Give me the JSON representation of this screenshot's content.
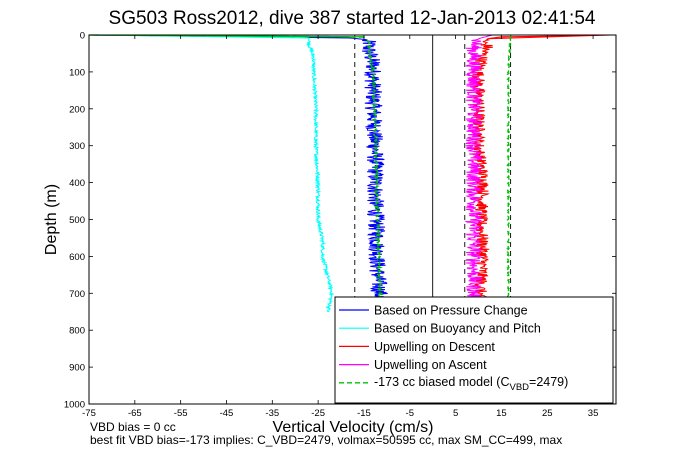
{
  "chart_data": {
    "type": "line",
    "title": "SG503 Ross2012, dive 387 started 12-Jan-2013 02:41:54",
    "xlabel": "Vertical Velocity (cm/s)",
    "ylabel": "Depth (m)",
    "xlim": [
      -75,
      40
    ],
    "ylim": [
      0,
      1000
    ],
    "y_reversed": true,
    "xticks": [
      "-75",
      "-65",
      "-55",
      "-45",
      "-35",
      "-25",
      "-15",
      "-5",
      "5",
      "15",
      "25",
      "35"
    ],
    "yticks": [
      "0",
      "100",
      "200",
      "300",
      "400",
      "500",
      "600",
      "700",
      "800",
      "900",
      "1000"
    ],
    "grid": false,
    "legend_position": "bottom-right",
    "reference_lines": [
      {
        "kind": "dashed",
        "x": -17
      },
      {
        "kind": "solid",
        "x": 0
      },
      {
        "kind": "dashed",
        "x": 7
      },
      {
        "kind": "dashed",
        "x": 17
      }
    ],
    "series": [
      {
        "name": "Based on Pressure Change",
        "color": "#0000ff",
        "noise": 1.2,
        "points": [
          [
            -75,
            0
          ],
          [
            -55,
            2
          ],
          [
            -25,
            5
          ],
          [
            -18,
            8
          ],
          [
            -15,
            12
          ],
          [
            -14,
            20
          ],
          [
            -14,
            40
          ],
          [
            -13,
            80
          ],
          [
            -13,
            150
          ],
          [
            -12.8,
            250
          ],
          [
            -12.5,
            350
          ],
          [
            -12.5,
            450
          ],
          [
            -12.2,
            550
          ],
          [
            -12,
            650
          ],
          [
            -11.5,
            710
          ],
          [
            -11.5,
            760
          ]
        ]
      },
      {
        "name": "Based on Buoyancy and Pitch",
        "color": "#00ffff",
        "noise": 0.25,
        "points": [
          [
            -75,
            0
          ],
          [
            -55,
            1
          ],
          [
            -40,
            3
          ],
          [
            -30,
            5
          ],
          [
            -27,
            8
          ],
          [
            -27,
            25
          ],
          [
            -26,
            60
          ],
          [
            -26,
            100
          ],
          [
            -25.5,
            200
          ],
          [
            -25.5,
            300
          ],
          [
            -25,
            400
          ],
          [
            -25,
            500
          ],
          [
            -24,
            560
          ],
          [
            -24,
            600
          ],
          [
            -23,
            650
          ],
          [
            -22,
            700
          ],
          [
            -23,
            760
          ],
          [
            -24,
            790
          ]
        ]
      },
      {
        "name": "Upwelling on Descent",
        "color": "#ff0000",
        "noise": 0.9,
        "points": [
          [
            39,
            0
          ],
          [
            25,
            3
          ],
          [
            15,
            5
          ],
          [
            12,
            10
          ],
          [
            11,
            20
          ],
          [
            12,
            30
          ],
          [
            11,
            50
          ],
          [
            10,
            100
          ],
          [
            10,
            200
          ],
          [
            10,
            300
          ],
          [
            11,
            400
          ],
          [
            10.5,
            500
          ],
          [
            11,
            600
          ],
          [
            10.5,
            680
          ],
          [
            10,
            750
          ]
        ]
      },
      {
        "name": "Upwelling on Ascent",
        "color": "#ff00ff",
        "noise": 1.1,
        "points": [
          [
            13,
            0
          ],
          [
            10,
            10
          ],
          [
            9,
            30
          ],
          [
            9,
            100
          ],
          [
            9,
            200
          ],
          [
            9,
            300
          ],
          [
            9,
            400
          ],
          [
            9,
            500
          ],
          [
            9,
            600
          ],
          [
            9,
            700
          ],
          [
            9,
            760
          ]
        ]
      },
      {
        "name": "-173 cc biased model (C_VBD=2479)",
        "color": "#00c000",
        "dashed": true,
        "noise": 0.2,
        "points": [
          [
            -75,
            0
          ],
          [
            -40,
            3
          ],
          [
            -15,
            5
          ],
          [
            -14,
            20
          ],
          [
            -13,
            100
          ],
          [
            -12.5,
            300
          ],
          [
            -12,
            500
          ],
          [
            -11.5,
            700
          ],
          [
            -11,
            760
          ]
        ]
      },
      {
        "name": "",
        "color": "#00c000",
        "dashed": true,
        "noise": 0.1,
        "points": [
          [
            17,
            0
          ],
          [
            16.5,
            100
          ],
          [
            16.5,
            300
          ],
          [
            16.5,
            500
          ],
          [
            16.5,
            700
          ],
          [
            16.5,
            760
          ]
        ]
      }
    ],
    "legend": {
      "entries": [
        {
          "label": "Based on Pressure Change",
          "color": "#0000ff",
          "dashed": false
        },
        {
          "label": "Based on Buoyancy and Pitch",
          "color": "#00ffff",
          "dashed": false
        },
        {
          "label": "Upwelling on Descent",
          "color": "#ff0000",
          "dashed": false
        },
        {
          "label": "Upwelling on Ascent",
          "color": "#ff00ff",
          "dashed": false
        }
      ],
      "model_entry": {
        "label_pre": "-173 cc biased model (C",
        "label_sub": "VBD",
        "label_post": "=2479)",
        "color": "#00c000"
      }
    },
    "footnotes": [
      "VBD bias = 0 cc",
      "best fit VBD bias=-173 implies: C_VBD=2479, volmax=50595 cc, max SM_CC=499, max"
    ]
  }
}
